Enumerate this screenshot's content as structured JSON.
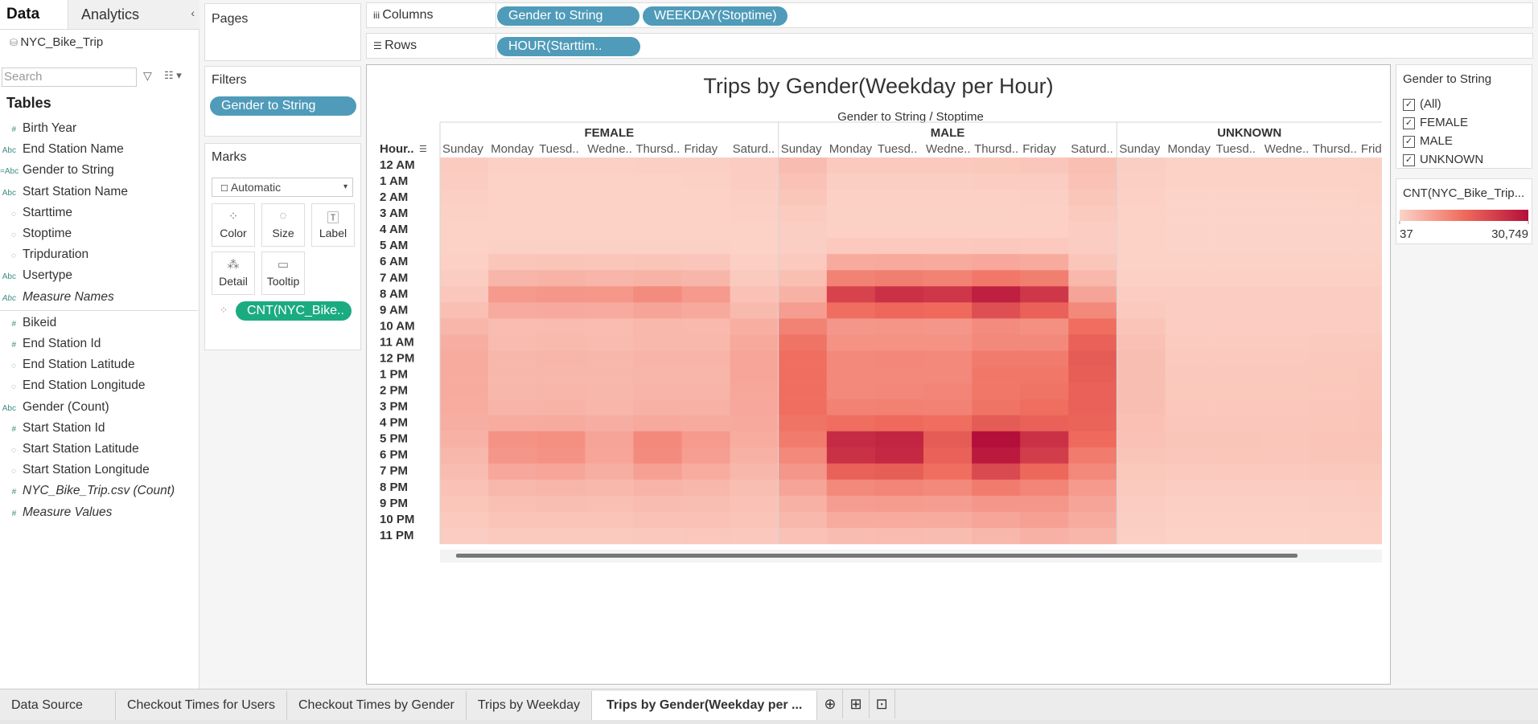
{
  "data_pane": {
    "tabs": [
      "Data",
      "Analytics"
    ],
    "source": "NYC_Bike_Trip",
    "search_placeholder": "Search",
    "tables_heading": "Tables",
    "dimensions": [
      {
        "icon": "#",
        "name": "Birth Year"
      },
      {
        "icon": "Abc",
        "name": "End Station Name"
      },
      {
        "icon": "=Abc",
        "name": "Gender to String"
      },
      {
        "icon": "Abc",
        "name": "Start Station Name"
      },
      {
        "name": "Starttime"
      },
      {
        "name": "Stoptime"
      },
      {
        "name": "Tripduration"
      },
      {
        "icon": "Abc",
        "name": "Usertype"
      },
      {
        "icon": "Abc",
        "name": "Measure Names",
        "italic": true
      }
    ],
    "measures": [
      {
        "icon": "#",
        "name": "Bikeid"
      },
      {
        "icon": "#",
        "name": "End Station Id"
      },
      {
        "name": "End Station Latitude"
      },
      {
        "name": "End Station Longitude"
      },
      {
        "icon": "Abc",
        "name": "Gender (Count)"
      },
      {
        "icon": "#",
        "name": "Start Station Id"
      },
      {
        "name": "Start Station Latitude"
      },
      {
        "name": "Start Station Longitude"
      },
      {
        "icon": "#",
        "name": "NYC_Bike_Trip.csv (Count)",
        "italic": true
      },
      {
        "icon": "#",
        "name": "Measure Values",
        "italic": true
      }
    ]
  },
  "shelves": {
    "pages": "Pages",
    "filters": {
      "label": "Filters",
      "pills": [
        "Gender to String"
      ]
    },
    "marks": {
      "label": "Marks",
      "mark_type": "Automatic",
      "buttons": [
        "Color",
        "Size",
        "Label",
        "Detail",
        "Tooltip"
      ],
      "pill": "CNT(NYC_Bike.."
    },
    "columns": {
      "label": "Columns",
      "pills": [
        "Gender to String",
        "WEEKDAY(Stoptime)"
      ]
    },
    "rows": {
      "label": "Rows",
      "pills": [
        "HOUR(Starttim.."
      ]
    }
  },
  "chart_data": {
    "type": "heatmap",
    "title": "Trips by Gender(Weekday per Hour)",
    "x_label": "Gender to String / Stoptime",
    "y_label": "Hour..",
    "hours": [
      "12 AM",
      "1 AM",
      "2 AM",
      "3 AM",
      "4 AM",
      "5 AM",
      "6 AM",
      "7 AM",
      "8 AM",
      "9 AM",
      "10 AM",
      "11 AM",
      "12 PM",
      "1 PM",
      "2 PM",
      "3 PM",
      "4 PM",
      "5 PM",
      "6 PM",
      "7 PM",
      "8 PM",
      "9 PM",
      "10 PM",
      "11 PM"
    ],
    "groups": [
      {
        "name": "FEMALE",
        "categories": [
          "Sunday",
          "Monday",
          "Tuesd..",
          "Wedne..",
          "Thursd..",
          "Friday",
          "Saturd.."
        ],
        "values": [
          [
            1200,
            900,
            700,
            400,
            300,
            300,
            500,
            1000,
            1800,
            3000,
            4500,
            5500,
            6000,
            6000,
            6000,
            5800,
            5500,
            5000,
            4200,
            3400,
            2600,
            2000,
            1500,
            1000
          ],
          [
            500,
            300,
            200,
            150,
            150,
            400,
            2000,
            4500,
            8500,
            6000,
            3500,
            3600,
            4200,
            4200,
            4200,
            4600,
            5800,
            9500,
            9000,
            6500,
            4200,
            3000,
            2200,
            1300
          ],
          [
            500,
            300,
            200,
            150,
            150,
            400,
            2100,
            4700,
            9000,
            6200,
            3600,
            3700,
            4300,
            4200,
            4300,
            4700,
            6000,
            10000,
            9500,
            6800,
            4400,
            3100,
            2300,
            1300
          ],
          [
            550,
            300,
            200,
            150,
            150,
            400,
            2000,
            4500,
            8800,
            6000,
            3500,
            3600,
            4200,
            4200,
            4200,
            4500,
            5500,
            7000,
            6800,
            5500,
            4000,
            3000,
            2200,
            1400
          ],
          [
            600,
            350,
            250,
            150,
            150,
            400,
            2100,
            4800,
            10500,
            7000,
            4000,
            4000,
            4600,
            4500,
            4600,
            5000,
            6200,
            11000,
            10500,
            7500,
            4800,
            3400,
            2600,
            1600
          ],
          [
            650,
            400,
            250,
            180,
            150,
            400,
            1900,
            4300,
            8500,
            6200,
            3900,
            4000,
            4600,
            4500,
            4600,
            5000,
            6000,
            8500,
            7800,
            5800,
            4200,
            3200,
            2600,
            1800
          ],
          [
            1100,
            900,
            700,
            450,
            300,
            350,
            700,
            1400,
            2500,
            3800,
            5400,
            6300,
            6800,
            6800,
            6600,
            6500,
            6200,
            5800,
            5000,
            4200,
            3200,
            2600,
            2200,
            1600
          ]
        ]
      },
      {
        "name": "MALE",
        "categories": [
          "Sunday",
          "Monday",
          "Tuesd..",
          "Wedne..",
          "Thursd..",
          "Friday",
          "Saturd.."
        ],
        "values": [
          [
            3500,
            2500,
            2000,
            1200,
            800,
            800,
            1500,
            3000,
            5000,
            8000,
            12000,
            14000,
            15000,
            15000,
            15000,
            15000,
            14000,
            13000,
            11000,
            9000,
            7000,
            5000,
            4000,
            2500
          ],
          [
            1500,
            800,
            500,
            400,
            500,
            1500,
            6000,
            12000,
            22000,
            15000,
            9000,
            9500,
            11000,
            11000,
            11000,
            12000,
            15000,
            26000,
            25000,
            17000,
            11000,
            8000,
            6000,
            3500
          ],
          [
            1500,
            800,
            500,
            400,
            500,
            1500,
            6200,
            12500,
            25000,
            16000,
            9200,
            9600,
            11200,
            11000,
            11200,
            12200,
            15500,
            27000,
            26500,
            17500,
            11500,
            8200,
            6100,
            3600
          ],
          [
            1500,
            800,
            500,
            400,
            500,
            1500,
            6000,
            12000,
            24000,
            15500,
            9000,
            9500,
            11000,
            11000,
            11500,
            12000,
            15000,
            18000,
            17000,
            15000,
            11000,
            8000,
            6000,
            3500
          ],
          [
            1700,
            900,
            550,
            400,
            500,
            1600,
            6500,
            13500,
            28000,
            20000,
            10500,
            11000,
            13000,
            13500,
            13500,
            14000,
            18000,
            30749,
            29000,
            21000,
            13000,
            9000,
            6800,
            4200
          ],
          [
            1900,
            1000,
            600,
            450,
            500,
            1500,
            6000,
            12500,
            24000,
            17000,
            10000,
            11000,
            13000,
            13500,
            14000,
            15000,
            17000,
            25000,
            23000,
            16000,
            11500,
            9000,
            7500,
            5000
          ],
          [
            3000,
            2500,
            2000,
            1400,
            900,
            1000,
            2000,
            4000,
            7000,
            11000,
            15000,
            17000,
            18000,
            17500,
            17000,
            17000,
            16500,
            15500,
            13000,
            11000,
            8500,
            7000,
            6000,
            4500
          ]
        ]
      },
      {
        "name": "UNKNOWN",
        "categories": [
          "Sunday",
          "Monday",
          "Tuesd..",
          "Wedne..",
          "Thursd..",
          "Frid"
        ],
        "values": [
          [
            800,
            600,
            500,
            300,
            200,
            200,
            300,
            500,
            900,
            1500,
            2300,
            2800,
            3100,
            3200,
            3200,
            3100,
            2900,
            2600,
            2100,
            1700,
            1300,
            1000,
            800,
            600
          ],
          [
            300,
            200,
            100,
            80,
            60,
            80,
            200,
            500,
            900,
            900,
            900,
            1200,
            1500,
            1600,
            1700,
            1800,
            1900,
            2100,
            1900,
            1500,
            1000,
            700,
            500,
            350
          ],
          [
            300,
            180,
            100,
            70,
            60,
            80,
            200,
            500,
            900,
            900,
            900,
            1200,
            1500,
            1600,
            1700,
            1800,
            1900,
            2100,
            2000,
            1500,
            1000,
            700,
            500,
            350
          ],
          [
            320,
            190,
            100,
            70,
            60,
            80,
            200,
            500,
            900,
            900,
            950,
            1250,
            1500,
            1600,
            1700,
            1800,
            1900,
            2000,
            1900,
            1500,
            1000,
            700,
            520,
            360
          ],
          [
            350,
            200,
            110,
            80,
            60,
            80,
            210,
            520,
            950,
            950,
            1000,
            1300,
            1600,
            1700,
            1800,
            1900,
            2000,
            2200,
            2100,
            1600,
            1100,
            750,
            550,
            400
          ],
          [
            400,
            250,
            150,
            90,
            60,
            80,
            200,
            500,
            900,
            1000,
            1100,
            1400,
            1800,
            1900,
            2000,
            2200,
            2300,
            2400,
            2100,
            1700,
            1200,
            900,
            700,
            500
          ]
        ]
      }
    ],
    "clim": [
      37,
      30749
    ],
    "colors": [
      "#fcd3c8",
      "#ef6b5c",
      "#b40f3a"
    ],
    "color_legend": {
      "title": "CNT(NYC_Bike_Trip...",
      "ticks": [
        37,
        {
          "value": 30749,
          "label": "30,749"
        }
      ]
    }
  },
  "legend": {
    "title": "Gender to String",
    "items": [
      "(All)",
      "FEMALE",
      "MALE",
      "UNKNOWN"
    ]
  },
  "sheet_tabs": {
    "tabs": [
      "Data Source",
      "Checkout Times for Users",
      "Checkout Times by Gender",
      "Trips by Weekday",
      "Trips by Gender(Weekday per ..."
    ],
    "active": 4
  }
}
